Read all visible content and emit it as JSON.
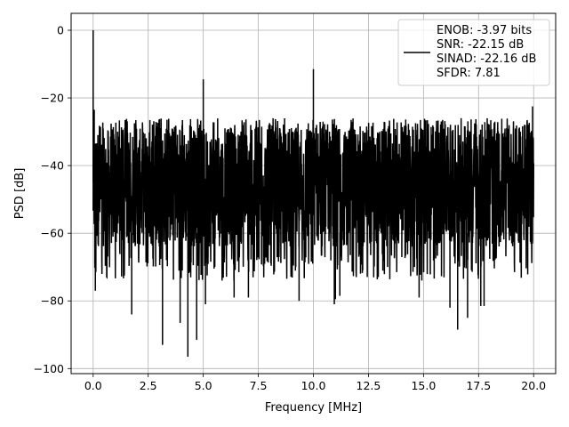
{
  "chart_data": {
    "type": "line",
    "title": "",
    "xlabel": "Frequency [MHz]",
    "ylabel": "PSD [dB]",
    "xlim": [
      -1.0,
      21.0
    ],
    "ylim": [
      -101.5,
      5.0
    ],
    "x_ticks": [
      0.0,
      2.5,
      5.0,
      7.5,
      10.0,
      12.5,
      15.0,
      17.5,
      20.0
    ],
    "x_tick_labels": [
      "0.0",
      "2.5",
      "5.0",
      "7.5",
      "10.0",
      "12.5",
      "15.0",
      "17.5",
      "20.0"
    ],
    "y_ticks": [
      0,
      -20,
      -40,
      -60,
      -80,
      -100
    ],
    "y_tick_labels": [
      "0",
      "−20",
      "−40",
      "−60",
      "−80",
      "−100"
    ],
    "grid": true,
    "legend_position": "top-right",
    "line_color": "#000000",
    "series": [
      {
        "name": "ENOB: -3.97 bits\nSNR: -22.15 dB\nSINAD: -22.16 dB\nSFDR: 7.81",
        "noise_floor": {
          "frequency_range_mhz": [
            0.0,
            20.0
          ],
          "upper_envelope_db": -26,
          "lower_envelope_db": -74,
          "dense_band_db": [
            -64,
            -29
          ]
        },
        "peaks": [
          {
            "x": 0.0,
            "y": 0
          },
          {
            "x": 0.05,
            "y": -23.5
          },
          {
            "x": 5.0,
            "y": -14.5
          },
          {
            "x": 10.0,
            "y": -11.5
          },
          {
            "x": 19.95,
            "y": -22.5
          }
        ],
        "dips": [
          {
            "x": 0.1,
            "y": -77
          },
          {
            "x": 1.75,
            "y": -84
          },
          {
            "x": 3.15,
            "y": -93
          },
          {
            "x": 3.95,
            "y": -86.5
          },
          {
            "x": 4.3,
            "y": -96.5
          },
          {
            "x": 4.7,
            "y": -91.5
          },
          {
            "x": 5.1,
            "y": -81
          },
          {
            "x": 6.4,
            "y": -79
          },
          {
            "x": 7.05,
            "y": -79
          },
          {
            "x": 9.35,
            "y": -80
          },
          {
            "x": 10.95,
            "y": -81
          },
          {
            "x": 11.0,
            "y": -79.5
          },
          {
            "x": 11.2,
            "y": -78.5
          },
          {
            "x": 14.8,
            "y": -79
          },
          {
            "x": 16.2,
            "y": -82
          },
          {
            "x": 16.55,
            "y": -88.5
          },
          {
            "x": 17.0,
            "y": -85
          },
          {
            "x": 17.6,
            "y": -81.5
          },
          {
            "x": 17.75,
            "y": -81.5
          }
        ]
      }
    ]
  }
}
